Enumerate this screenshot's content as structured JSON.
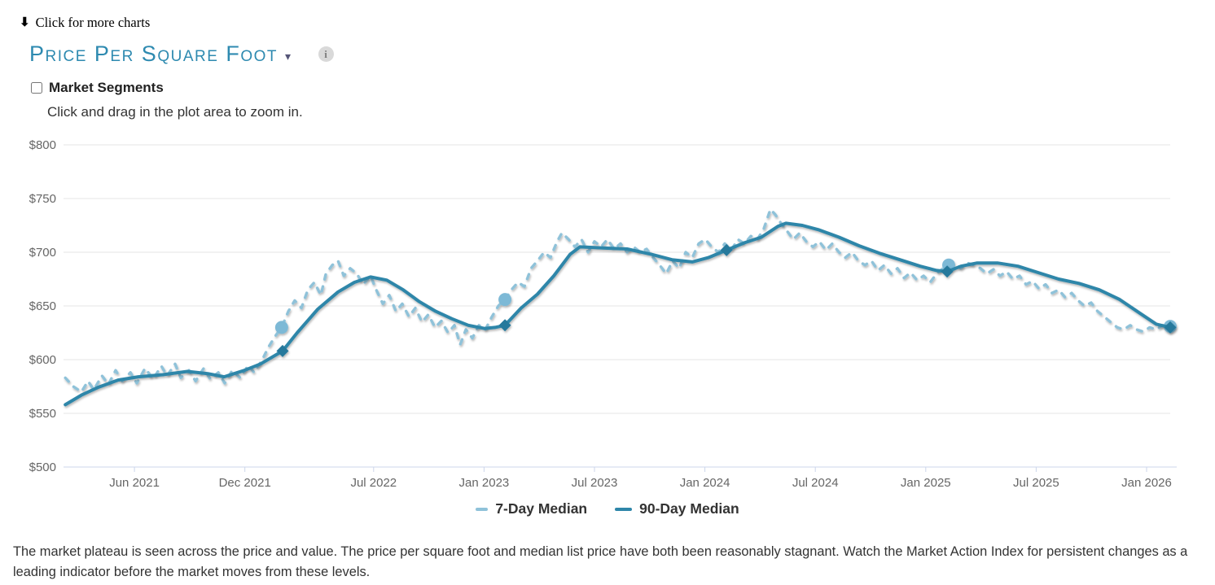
{
  "icons": {
    "down_arrow": "⬇",
    "caret": "▾",
    "info": "i"
  },
  "header": {
    "more_charts_label": "Click for more charts",
    "title": "Price Per Square Foot",
    "market_segments_label": "Market Segments",
    "hint": "Click and drag in the plot area to zoom in."
  },
  "colors": {
    "accent_teal": "#2e8ab0",
    "series_7day": "#8fc2d9",
    "series_90day": "#2e86a9",
    "grid": "#e6e6e6",
    "axis_line": "#ccd6eb",
    "axis_label": "#666666",
    "legend_text": "#333333"
  },
  "footer_text": "The market plateau is seen across the price and value. The price per square foot and median list price have both been reasonably stagnant. Watch the Market Action Index for persistent changes as a leading indicator before the market moves from these levels.",
  "chart_data": {
    "type": "line",
    "title": "Price Per Square Foot",
    "xlabel": "",
    "ylabel": "",
    "grid": true,
    "legend_position": "bottom-center",
    "xlim": [
      2021.096,
      2026.107
    ],
    "ylim": [
      500,
      800
    ],
    "y_ticks": [
      {
        "value": 500,
        "label": "$500"
      },
      {
        "value": 550,
        "label": "$550"
      },
      {
        "value": 600,
        "label": "$600"
      },
      {
        "value": 650,
        "label": "$650"
      },
      {
        "value": 700,
        "label": "$700"
      },
      {
        "value": 750,
        "label": "$750"
      },
      {
        "value": 800,
        "label": "$800"
      }
    ],
    "x_ticks": [
      {
        "value": 2021.417,
        "label": "Jun 2021"
      },
      {
        "value": 2021.917,
        "label": "Dec 2021"
      },
      {
        "value": 2022.5,
        "label": "Jul 2022"
      },
      {
        "value": 2023.0,
        "label": "Jan 2023"
      },
      {
        "value": 2023.5,
        "label": "Jul 2023"
      },
      {
        "value": 2024.0,
        "label": "Jan 2024"
      },
      {
        "value": 2024.5,
        "label": "Jul 2024"
      },
      {
        "value": 2025.0,
        "label": "Jan 2025"
      },
      {
        "value": 2025.5,
        "label": "Jul 2025"
      },
      {
        "value": 2026.0,
        "label": "Jan 2026"
      }
    ],
    "series": [
      {
        "name": "7-Day Median",
        "color": "#8fc2d9",
        "marker_color": "#7db9d6",
        "dash": "dashed",
        "marker_shape": "circle",
        "markers": [
          [
            2022.084,
            630
          ],
          [
            2023.095,
            656
          ],
          [
            2025.104,
            688
          ],
          [
            2026.107,
            631
          ]
        ],
        "points": [
          [
            2021.104,
            583
          ],
          [
            2021.14,
            575
          ],
          [
            2021.177,
            570
          ],
          [
            2021.207,
            580
          ],
          [
            2021.233,
            572
          ],
          [
            2021.27,
            585
          ],
          [
            2021.299,
            577
          ],
          [
            2021.332,
            590
          ],
          [
            2021.362,
            580
          ],
          [
            2021.399,
            588
          ],
          [
            2021.428,
            578
          ],
          [
            2021.465,
            592
          ],
          [
            2021.502,
            582
          ],
          [
            2021.539,
            594
          ],
          [
            2021.565,
            585
          ],
          [
            2021.601,
            596
          ],
          [
            2021.627,
            583
          ],
          [
            2021.664,
            590
          ],
          [
            2021.694,
            580
          ],
          [
            2021.731,
            592
          ],
          [
            2021.76,
            582
          ],
          [
            2021.797,
            588
          ],
          [
            2021.826,
            578
          ],
          [
            2021.86,
            590
          ],
          [
            2021.896,
            583
          ],
          [
            2021.933,
            595
          ],
          [
            2021.959,
            588
          ],
          [
            2021.996,
            600
          ],
          [
            2022.025,
            612
          ],
          [
            2022.055,
            622
          ],
          [
            2022.084,
            630
          ],
          [
            2022.114,
            645
          ],
          [
            2022.143,
            655
          ],
          [
            2022.173,
            648
          ],
          [
            2022.202,
            665
          ],
          [
            2022.232,
            672
          ],
          [
            2022.261,
            660
          ],
          [
            2022.284,
            680
          ],
          [
            2022.313,
            688
          ],
          [
            2022.339,
            692
          ],
          [
            2022.365,
            678
          ],
          [
            2022.394,
            685
          ],
          [
            2022.424,
            680
          ],
          [
            2022.453,
            670
          ],
          [
            2022.486,
            678
          ],
          [
            2022.512,
            665
          ],
          [
            2022.542,
            652
          ],
          [
            2022.571,
            660
          ],
          [
            2022.601,
            645
          ],
          [
            2022.63,
            652
          ],
          [
            2022.66,
            640
          ],
          [
            2022.689,
            648
          ],
          [
            2022.719,
            635
          ],
          [
            2022.748,
            642
          ],
          [
            2022.778,
            630
          ],
          [
            2022.807,
            636
          ],
          [
            2022.837,
            625
          ],
          [
            2022.866,
            632
          ],
          [
            2022.892,
            614
          ],
          [
            2022.918,
            628
          ],
          [
            2022.947,
            620
          ],
          [
            2022.977,
            632
          ],
          [
            2023.006,
            628
          ],
          [
            2023.036,
            640
          ],
          [
            2023.065,
            650
          ],
          [
            2023.095,
            656
          ],
          [
            2023.124,
            665
          ],
          [
            2023.154,
            672
          ],
          [
            2023.183,
            668
          ],
          [
            2023.213,
            685
          ],
          [
            2023.242,
            692
          ],
          [
            2023.272,
            700
          ],
          [
            2023.301,
            695
          ],
          [
            2023.331,
            710
          ],
          [
            2023.353,
            718
          ],
          [
            2023.383,
            712
          ],
          [
            2023.412,
            705
          ],
          [
            2023.441,
            712
          ],
          [
            2023.471,
            700
          ],
          [
            2023.5,
            710
          ],
          [
            2023.53,
            705
          ],
          [
            2023.559,
            712
          ],
          [
            2023.589,
            703
          ],
          [
            2023.618,
            708
          ],
          [
            2023.648,
            700
          ],
          [
            2023.677,
            705
          ],
          [
            2023.707,
            700
          ],
          [
            2023.736,
            703
          ],
          [
            2023.766,
            695
          ],
          [
            2023.795,
            688
          ],
          [
            2023.825,
            680
          ],
          [
            2023.854,
            692
          ],
          [
            2023.884,
            685
          ],
          [
            2023.913,
            700
          ],
          [
            2023.943,
            695
          ],
          [
            2023.972,
            708
          ],
          [
            2024.002,
            712
          ],
          [
            2024.031,
            705
          ],
          [
            2024.061,
            700
          ],
          [
            2024.09,
            708
          ],
          [
            2024.12,
            702
          ],
          [
            2024.149,
            712
          ],
          [
            2024.179,
            708
          ],
          [
            2024.208,
            715
          ],
          [
            2024.238,
            712
          ],
          [
            2024.267,
            722
          ],
          [
            2024.297,
            740
          ],
          [
            2024.319,
            735
          ],
          [
            2024.341,
            728
          ],
          [
            2024.371,
            720
          ],
          [
            2024.4,
            712
          ],
          [
            2024.43,
            718
          ],
          [
            2024.459,
            710
          ],
          [
            2024.489,
            705
          ],
          [
            2024.518,
            710
          ],
          [
            2024.548,
            702
          ],
          [
            2024.577,
            708
          ],
          [
            2024.607,
            700
          ],
          [
            2024.636,
            695
          ],
          [
            2024.666,
            700
          ],
          [
            2024.695,
            692
          ],
          [
            2024.725,
            688
          ],
          [
            2024.754,
            692
          ],
          [
            2024.784,
            683
          ],
          [
            2024.813,
            688
          ],
          [
            2024.843,
            680
          ],
          [
            2024.872,
            685
          ],
          [
            2024.902,
            676
          ],
          [
            2024.931,
            681
          ],
          [
            2024.961,
            674
          ],
          [
            2024.99,
            678
          ],
          [
            2025.02,
            672
          ],
          [
            2025.049,
            680
          ],
          [
            2025.079,
            685
          ],
          [
            2025.104,
            688
          ],
          [
            2025.13,
            690
          ],
          [
            2025.159,
            685
          ],
          [
            2025.189,
            690
          ],
          [
            2025.218,
            688
          ],
          [
            2025.248,
            685
          ],
          [
            2025.277,
            680
          ],
          [
            2025.307,
            684
          ],
          [
            2025.336,
            678
          ],
          [
            2025.366,
            682
          ],
          [
            2025.395,
            675
          ],
          [
            2025.425,
            678
          ],
          [
            2025.454,
            670
          ],
          [
            2025.484,
            673
          ],
          [
            2025.513,
            666
          ],
          [
            2025.543,
            670
          ],
          [
            2025.572,
            662
          ],
          [
            2025.602,
            665
          ],
          [
            2025.631,
            658
          ],
          [
            2025.661,
            662
          ],
          [
            2025.69,
            655
          ],
          [
            2025.719,
            650
          ],
          [
            2025.749,
            653
          ],
          [
            2025.778,
            645
          ],
          [
            2025.808,
            640
          ],
          [
            2025.837,
            635
          ],
          [
            2025.867,
            630
          ],
          [
            2025.896,
            628
          ],
          [
            2025.926,
            632
          ],
          [
            2025.955,
            628
          ],
          [
            2025.985,
            626
          ],
          [
            2026.014,
            630
          ],
          [
            2026.044,
            628
          ],
          [
            2026.073,
            632
          ],
          [
            2026.107,
            631
          ]
        ]
      },
      {
        "name": "90-Day Median",
        "color": "#2e86a9",
        "marker_color": "#27799c",
        "dash": "solid",
        "marker_shape": "diamond",
        "markers": [
          [
            2022.088,
            608
          ],
          [
            2023.095,
            632
          ],
          [
            2024.098,
            702
          ],
          [
            2025.097,
            682
          ],
          [
            2026.107,
            630
          ]
        ],
        "points": [
          [
            2021.104,
            558
          ],
          [
            2021.177,
            567
          ],
          [
            2021.251,
            574
          ],
          [
            2021.343,
            581
          ],
          [
            2021.435,
            584
          ],
          [
            2021.546,
            586
          ],
          [
            2021.657,
            589
          ],
          [
            2021.749,
            587
          ],
          [
            2021.823,
            584
          ],
          [
            2021.915,
            590
          ],
          [
            2021.988,
            596
          ],
          [
            2022.088,
            608
          ],
          [
            2022.154,
            625
          ],
          [
            2022.247,
            647
          ],
          [
            2022.339,
            663
          ],
          [
            2022.413,
            672
          ],
          [
            2022.486,
            677
          ],
          [
            2022.56,
            674
          ],
          [
            2022.634,
            665
          ],
          [
            2022.707,
            654
          ],
          [
            2022.781,
            645
          ],
          [
            2022.855,
            638
          ],
          [
            2022.929,
            632
          ],
          [
            2023.002,
            629
          ],
          [
            2023.05,
            630
          ],
          [
            2023.095,
            632
          ],
          [
            2023.168,
            648
          ],
          [
            2023.242,
            661
          ],
          [
            2023.316,
            678
          ],
          [
            2023.39,
            698
          ],
          [
            2023.434,
            705
          ],
          [
            2023.537,
            704
          ],
          [
            2023.648,
            703
          ],
          [
            2023.758,
            698
          ],
          [
            2023.851,
            693
          ],
          [
            2023.943,
            691
          ],
          [
            2024.016,
            695
          ],
          [
            2024.098,
            702
          ],
          [
            2024.182,
            709
          ],
          [
            2024.256,
            714
          ],
          [
            2024.33,
            724
          ],
          [
            2024.367,
            727
          ],
          [
            2024.441,
            725
          ],
          [
            2024.514,
            721
          ],
          [
            2024.607,
            714
          ],
          [
            2024.699,
            706
          ],
          [
            2024.791,
            699
          ],
          [
            2024.883,
            693
          ],
          [
            2024.975,
            687
          ],
          [
            2025.049,
            683
          ],
          [
            2025.097,
            682
          ],
          [
            2025.159,
            687
          ],
          [
            2025.233,
            690
          ],
          [
            2025.325,
            690
          ],
          [
            2025.418,
            687
          ],
          [
            2025.51,
            681
          ],
          [
            2025.602,
            675
          ],
          [
            2025.694,
            671
          ],
          [
            2025.786,
            665
          ],
          [
            2025.878,
            656
          ],
          [
            2025.971,
            643
          ],
          [
            2026.044,
            633
          ],
          [
            2026.107,
            630
          ]
        ]
      }
    ]
  }
}
